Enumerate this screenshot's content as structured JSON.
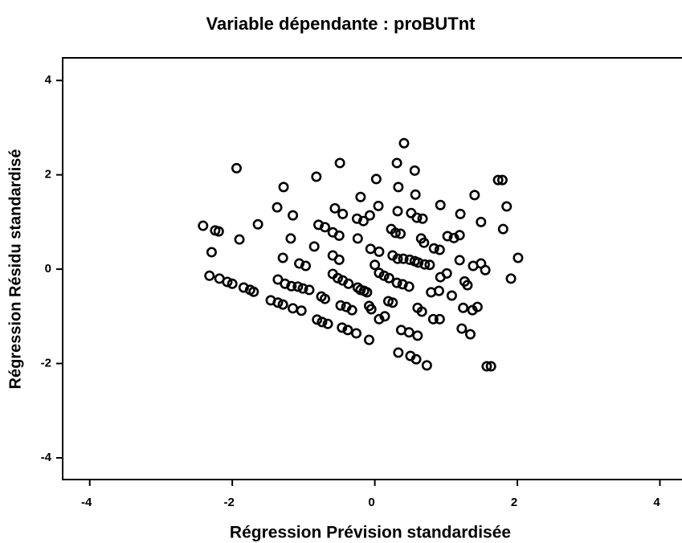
{
  "chart_data": {
    "type": "scatter",
    "title": "Variable dépendante : proBUTnt",
    "xlabel": "Régression Prévision standardisée",
    "ylabel": "Régression Résidu standardisé",
    "xlim": [
      -4.38,
      4.31
    ],
    "ylim": [
      -4.46,
      4.48
    ],
    "xticks": [
      -4,
      -2,
      0,
      2,
      4
    ],
    "yticks": [
      -4,
      -2,
      0,
      2,
      4
    ],
    "color": "#000000",
    "x": [
      -2.41,
      -2.24,
      -2.19,
      -2.29,
      -2.32,
      -2.18,
      -2.07,
      -2.0,
      -1.94,
      -1.9,
      -1.84,
      -1.75,
      -1.7,
      -1.64,
      -1.46,
      -1.36,
      -1.29,
      -1.37,
      -1.28,
      -1.15,
      -1.18,
      -1.29,
      -1.36,
      -1.26,
      -1.17,
      -1.08,
      -1.01,
      -0.92,
      -1.15,
      -1.03,
      -1.06,
      -0.97,
      -0.82,
      -0.85,
      -0.79,
      -0.7,
      -0.75,
      -0.7,
      -0.81,
      -0.74,
      -0.66,
      -0.49,
      -0.56,
      -0.59,
      -0.5,
      -0.45,
      -0.59,
      -0.5,
      -0.59,
      -0.52,
      -0.45,
      -0.37,
      -0.48,
      -0.4,
      -0.32,
      -0.46,
      -0.38,
      -0.26,
      -0.24,
      -0.25,
      -0.16,
      -0.07,
      -0.2,
      0.02,
      0.05,
      0.0,
      -0.06,
      0.06,
      0.06,
      0.13,
      0.2,
      0.19,
      -0.24,
      -0.2,
      -0.15,
      -0.11,
      -0.08,
      -0.05,
      -0.08,
      0.06,
      0.14,
      0.25,
      0.31,
      0.39,
      0.48,
      0.23,
      0.29,
      0.36,
      0.32,
      0.33,
      0.31,
      0.41,
      0.25,
      0.32,
      0.4,
      0.49,
      0.56,
      0.51,
      0.56,
      0.57,
      0.59,
      0.67,
      0.65,
      0.69,
      0.6,
      0.66,
      0.33,
      0.5,
      0.58,
      0.73,
      0.37,
      0.48,
      0.6,
      0.61,
      0.7,
      0.77,
      0.79,
      0.9,
      0.92,
      0.83,
      0.91,
      0.82,
      0.91,
      1.01,
      0.92,
      1.02,
      1.11,
      1.2,
      1.19,
      1.26,
      1.24,
      1.22,
      1.34,
      1.37,
      1.08,
      1.19,
      1.38,
      1.4,
      1.49,
      1.49,
      1.44,
      1.55,
      1.57,
      1.63,
      1.73,
      1.79,
      1.85,
      1.8,
      2.01,
      1.91,
      1.3
    ],
    "values": [
      0.92,
      0.82,
      0.8,
      0.36,
      -0.14,
      -0.2,
      -0.27,
      -0.31,
      2.14,
      0.63,
      -0.39,
      -0.44,
      -0.48,
      0.95,
      -0.66,
      -0.71,
      -0.75,
      1.31,
      1.74,
      1.14,
      0.65,
      0.24,
      -0.22,
      -0.31,
      -0.36,
      -0.37,
      -0.41,
      -0.44,
      -0.83,
      -0.88,
      0.12,
      0.07,
      1.96,
      0.48,
      0.94,
      0.89,
      -0.58,
      -0.63,
      -1.07,
      -1.12,
      -1.16,
      2.25,
      1.29,
      0.78,
      0.71,
      1.17,
      0.29,
      0.2,
      -0.1,
      -0.19,
      -0.24,
      -0.31,
      -0.77,
      -0.8,
      -0.87,
      -1.24,
      -1.29,
      -1.36,
      0.65,
      1.07,
      1.02,
      1.14,
      1.53,
      1.91,
      1.34,
      0.09,
      0.43,
      0.37,
      -0.08,
      -0.14,
      -0.19,
      -0.68,
      -0.39,
      -0.44,
      -0.46,
      -0.49,
      -0.78,
      -0.85,
      -1.5,
      -1.06,
      -1.0,
      -0.71,
      -0.29,
      -0.32,
      -0.37,
      0.85,
      0.77,
      0.75,
      1.23,
      1.74,
      2.25,
      2.67,
      0.29,
      0.22,
      0.22,
      0.2,
      0.17,
      1.19,
      2.09,
      1.58,
      1.09,
      1.07,
      0.65,
      0.56,
      -0.82,
      -0.9,
      -1.77,
      -1.84,
      -1.91,
      -2.04,
      -1.29,
      -1.34,
      -1.41,
      0.14,
      0.1,
      0.09,
      -0.49,
      -0.46,
      -0.17,
      0.44,
      0.41,
      -1.06,
      -1.06,
      -0.09,
      1.36,
      0.7,
      0.66,
      1.17,
      0.72,
      -0.26,
      -0.82,
      -1.26,
      -1.38,
      -0.87,
      -0.56,
      0.19,
      0.07,
      1.57,
      1.0,
      0.12,
      -0.8,
      -0.02,
      -2.06,
      -2.06,
      1.89,
      1.89,
      1.33,
      0.85,
      0.24,
      -0.2,
      -0.34
    ]
  }
}
